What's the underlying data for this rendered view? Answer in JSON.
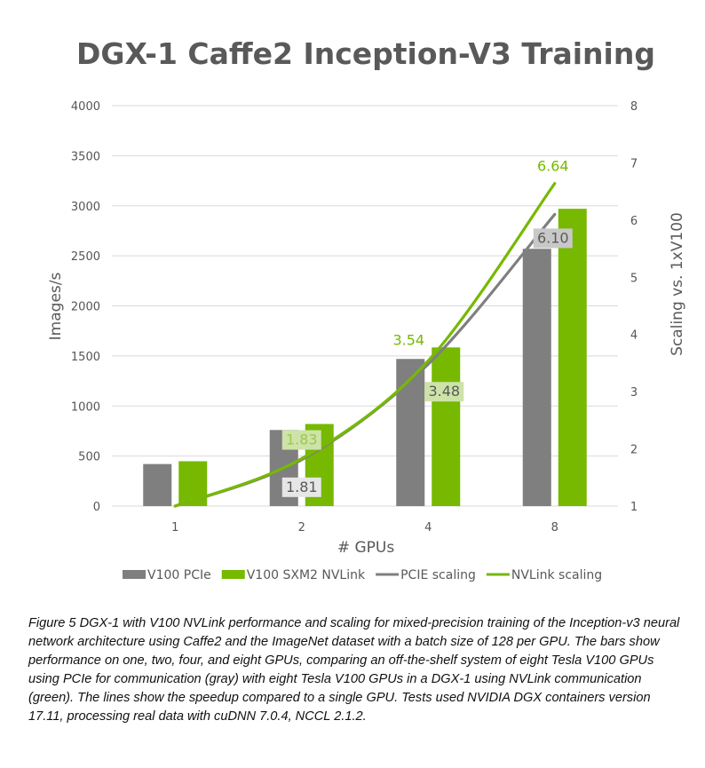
{
  "chart_data": {
    "type": "bar",
    "title": "DGX-1 Caffe2 Inception-V3 Training",
    "xlabel": "# GPUs",
    "ylabel": "Images/s",
    "y2label": "Scaling vs. 1xV100",
    "categories": [
      "1",
      "2",
      "4",
      "8"
    ],
    "ylim": [
      0,
      4000
    ],
    "yticks": [
      0,
      500,
      1000,
      1500,
      2000,
      2500,
      3000,
      3500,
      4000
    ],
    "y2lim": [
      1,
      8
    ],
    "y2ticks": [
      1,
      2,
      3,
      4,
      5,
      6,
      7,
      8
    ],
    "grid": true,
    "legend_position": "bottom",
    "series": [
      {
        "name": "V100 PCIe",
        "kind": "bar",
        "axis": "left",
        "color": "#7f7f7f",
        "values": [
          420,
          760,
          1470,
          2570
        ]
      },
      {
        "name": "V100 SXM2 NVLink",
        "kind": "bar",
        "axis": "left",
        "color": "#76b900",
        "values": [
          448,
          820,
          1585,
          2970
        ]
      },
      {
        "name": "PCIE scaling",
        "kind": "line",
        "axis": "right",
        "color": "#7f7f7f",
        "values": [
          1.0,
          1.81,
          3.48,
          6.1
        ],
        "labels": [
          "",
          "1.81",
          "3.48",
          "6.10"
        ]
      },
      {
        "name": "NVLink scaling",
        "kind": "line",
        "axis": "right",
        "color": "#76b900",
        "values": [
          1.0,
          1.83,
          3.54,
          6.64
        ],
        "labels": [
          "",
          "1.83",
          "3.54",
          "6.64"
        ]
      }
    ]
  },
  "caption": "Figure 5    DGX-1 with V100 NVLink performance and scaling for mixed-precision training of the Inception-v3 neural network architecture using Caffe2 and the ImageNet dataset with a batch size of 128 per GPU. The bars show performance on one, two, four, and eight GPUs, comparing an off-the-shelf system of eight Tesla V100 GPUs using PCIe for communication (gray) with eight Tesla V100 GPUs in a DGX-1 using NVLink communication (green). The lines show the speedup compared to a single GPU. Tests used NVIDIA DGX containers version 17.11, processing real data with cuDNN 7.0.4, NCCL 2.1.2."
}
